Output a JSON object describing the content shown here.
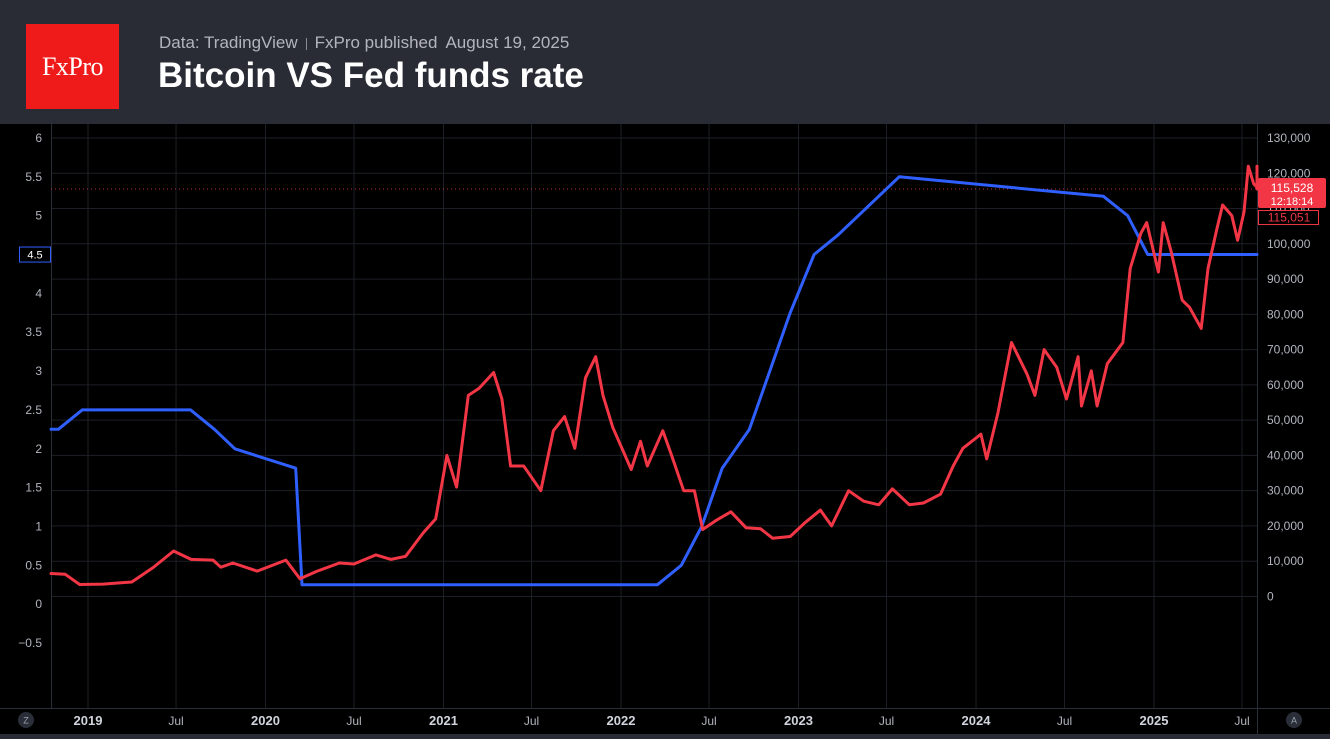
{
  "header": {
    "logo_text": "FxPro",
    "source": "Data: TradingView",
    "publisher": "FxPro published",
    "date": "August 19, 2025",
    "title": "Bitcoin VS Fed funds rate"
  },
  "colors": {
    "fed_line": "#2f5fff",
    "btc_line": "#f23645",
    "logo_bg": "#ef1b1b",
    "header_bg": "#2a2c35",
    "chart_bg": "#000000"
  },
  "chart_data": {
    "type": "line",
    "title": "Bitcoin VS Fed funds rate",
    "grid": true,
    "x_ticks": [
      "2019",
      "Jul",
      "2020",
      "Jul",
      "2021",
      "Jul",
      "2022",
      "Jul",
      "2023",
      "Jul",
      "2024",
      "Jul",
      "2025",
      "Jul"
    ],
    "left_axis": {
      "ylim": [
        -0.75,
        6.2
      ],
      "ticks": [
        "6",
        "5.5",
        "5",
        "4.5",
        "4",
        "3.5",
        "3",
        "2.5",
        "2",
        "1.5",
        "1",
        "0.5",
        "0",
        "−0.5"
      ],
      "current_label": "4.5"
    },
    "right_axis": {
      "ylim": [
        -18000,
        132000
      ],
      "ticks": [
        "130,000",
        "120,000",
        "110,000",
        "100,000",
        "90,000",
        "80,000",
        "70,000",
        "60,000",
        "50,000",
        "40,000",
        "30,000",
        "20,000",
        "10,000",
        "0"
      ],
      "price_label": "115,528",
      "countdown_label": "12:18:14",
      "secondary_price_label": "115,051",
      "last_price": 115528
    },
    "axis_buttons": {
      "left": "Z",
      "right": "A"
    },
    "series": [
      {
        "axis": "left",
        "color": "#2f5fff",
        "x": [
          "2018-10-01",
          "2018-11-01",
          "2018-12-20",
          "2019-07-31",
          "2019-09-18",
          "2019-10-30",
          "2020-03-03",
          "2020-03-16",
          "2022-03-17",
          "2022-05-05",
          "2022-06-16",
          "2022-07-28",
          "2022-09-22",
          "2022-11-03",
          "2022-12-15",
          "2023-02-02",
          "2023-03-23",
          "2023-05-04",
          "2023-07-27",
          "2024-09-19",
          "2024-11-08",
          "2024-12-19",
          "2025-08-19"
        ],
        "values": [
          2.25,
          2.25,
          2.5,
          2.5,
          2.25,
          2.0,
          1.75,
          0.25,
          0.25,
          0.5,
          1.0,
          1.75,
          2.25,
          3.0,
          3.75,
          4.5,
          4.75,
          5.0,
          5.5,
          5.25,
          5.0,
          4.5,
          4.5
        ]
      },
      {
        "axis": "right",
        "color": "#f23645",
        "x": [
          "2018-10-01",
          "2018-11-15",
          "2018-12-15",
          "2019-02-01",
          "2019-04-01",
          "2019-05-15",
          "2019-06-26",
          "2019-08-01",
          "2019-09-15",
          "2019-10-01",
          "2019-10-26",
          "2019-12-15",
          "2020-02-12",
          "2020-03-12",
          "2020-04-15",
          "2020-06-01",
          "2020-07-01",
          "2020-08-15",
          "2020-09-15",
          "2020-10-15",
          "2020-11-20",
          "2020-12-16",
          "2021-01-08",
          "2021-01-28",
          "2021-02-21",
          "2021-03-15",
          "2021-04-14",
          "2021-05-01",
          "2021-05-19",
          "2021-06-15",
          "2021-07-20",
          "2021-08-15",
          "2021-09-07",
          "2021-09-28",
          "2021-10-20",
          "2021-11-10",
          "2021-11-25",
          "2021-12-15",
          "2022-01-22",
          "2022-02-10",
          "2022-02-24",
          "2022-03-28",
          "2022-04-15",
          "2022-05-10",
          "2022-06-01",
          "2022-06-18",
          "2022-07-15",
          "2022-08-15",
          "2022-09-15",
          "2022-10-15",
          "2022-11-09",
          "2022-12-15",
          "2023-01-15",
          "2023-02-15",
          "2023-03-10",
          "2023-04-14",
          "2023-05-15",
          "2023-06-15",
          "2023-07-13",
          "2023-08-17",
          "2023-09-15",
          "2023-10-20",
          "2023-11-15",
          "2023-12-05",
          "2024-01-11",
          "2024-01-23",
          "2024-02-15",
          "2024-03-14",
          "2024-04-15",
          "2024-05-01",
          "2024-05-20",
          "2024-06-15",
          "2024-07-05",
          "2024-07-29",
          "2024-08-05",
          "2024-08-25",
          "2024-09-06",
          "2024-09-27",
          "2024-10-29",
          "2024-11-13",
          "2024-12-05",
          "2024-12-17",
          "2025-01-10",
          "2025-01-20",
          "2025-02-05",
          "2025-02-28",
          "2025-03-15",
          "2025-04-08",
          "2025-04-22",
          "2025-05-10",
          "2025-05-22",
          "2025-06-10",
          "2025-06-22",
          "2025-07-05",
          "2025-07-14",
          "2025-07-25",
          "2025-08-08",
          "2025-08-14",
          "2025-08-19"
        ],
        "values": [
          6500,
          6300,
          3400,
          3500,
          4100,
          8200,
          12900,
          10500,
          10300,
          8300,
          9500,
          7200,
          10300,
          5000,
          7100,
          9500,
          9200,
          11800,
          10500,
          11400,
          18000,
          22000,
          40000,
          31000,
          57000,
          59000,
          63500,
          56000,
          37000,
          37000,
          30000,
          47000,
          51000,
          42000,
          62000,
          68000,
          57000,
          48000,
          36000,
          44000,
          37000,
          47000,
          40000,
          30000,
          30000,
          19000,
          21500,
          24000,
          19500,
          19200,
          16500,
          17000,
          21000,
          24500,
          20000,
          30000,
          27000,
          26000,
          30500,
          26000,
          26500,
          29000,
          37000,
          42000,
          46000,
          39000,
          52000,
          72000,
          63000,
          57000,
          70000,
          65000,
          56000,
          68000,
          54000,
          64000,
          54000,
          66000,
          72000,
          93000,
          103000,
          106000,
          92000,
          106000,
          98000,
          84000,
          82000,
          76000,
          93000,
          104000,
          111000,
          108000,
          101000,
          109000,
          122000,
          117000,
          116000,
          122000,
          115528
        ]
      }
    ]
  }
}
